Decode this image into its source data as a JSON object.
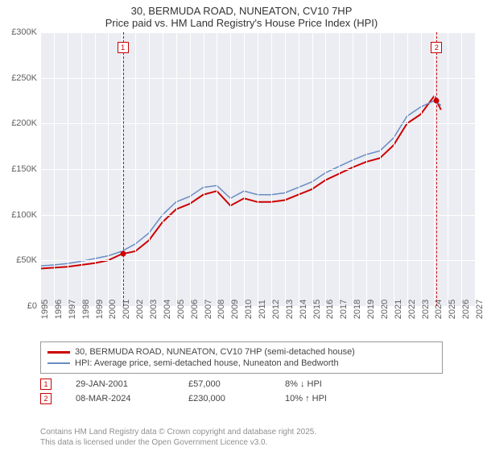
{
  "title_line1": "30, BERMUDA ROAD, NUNEATON, CV10 7HP",
  "title_line2": "Price paid vs. HM Land Registry's House Price Index (HPI)",
  "chart": {
    "type": "line",
    "background_color": "#ebedf2",
    "grid_color": "#ffffff",
    "ylim": [
      0,
      300000
    ],
    "ytick_step": 50000,
    "yticks": [
      "£0",
      "£50K",
      "£100K",
      "£150K",
      "£200K",
      "£250K",
      "£300K"
    ],
    "xlim": [
      1995,
      2027
    ],
    "xticks": [
      1995,
      1996,
      1997,
      1998,
      1999,
      2000,
      2001,
      2002,
      2003,
      2004,
      2005,
      2006,
      2007,
      2008,
      2009,
      2010,
      2011,
      2012,
      2013,
      2014,
      2015,
      2016,
      2017,
      2018,
      2019,
      2020,
      2021,
      2022,
      2023,
      2024,
      2025,
      2026,
      2027
    ],
    "series": [
      {
        "name": "property",
        "label": "30, BERMUDA ROAD, NUNEATON, CV10 7HP (semi-detached house)",
        "color": "#cc0000",
        "line_width": 2,
        "data": [
          [
            1995,
            41000
          ],
          [
            1996,
            42000
          ],
          [
            1997,
            43000
          ],
          [
            1998,
            45000
          ],
          [
            1999,
            47000
          ],
          [
            2000,
            50000
          ],
          [
            2001,
            57000
          ],
          [
            2002,
            60000
          ],
          [
            2003,
            72000
          ],
          [
            2004,
            92000
          ],
          [
            2005,
            106000
          ],
          [
            2006,
            112000
          ],
          [
            2007,
            122000
          ],
          [
            2008,
            126000
          ],
          [
            2009,
            110000
          ],
          [
            2010,
            118000
          ],
          [
            2011,
            114000
          ],
          [
            2012,
            114000
          ],
          [
            2013,
            116000
          ],
          [
            2014,
            122000
          ],
          [
            2015,
            128000
          ],
          [
            2016,
            138000
          ],
          [
            2017,
            145000
          ],
          [
            2018,
            152000
          ],
          [
            2019,
            158000
          ],
          [
            2020,
            162000
          ],
          [
            2021,
            176000
          ],
          [
            2022,
            200000
          ],
          [
            2023,
            210000
          ],
          [
            2024,
            230000
          ],
          [
            2024.5,
            215000
          ]
        ]
      },
      {
        "name": "hpi",
        "label": "HPI: Average price, semi-detached house, Nuneaton and Bedworth",
        "color": "#6a8bc4",
        "line_width": 1.5,
        "data": [
          [
            1995,
            44000
          ],
          [
            1996,
            45000
          ],
          [
            1997,
            46500
          ],
          [
            1998,
            49000
          ],
          [
            1999,
            52000
          ],
          [
            2000,
            55000
          ],
          [
            2001,
            60000
          ],
          [
            2002,
            68000
          ],
          [
            2003,
            80000
          ],
          [
            2004,
            100000
          ],
          [
            2005,
            114000
          ],
          [
            2006,
            120000
          ],
          [
            2007,
            130000
          ],
          [
            2008,
            132000
          ],
          [
            2009,
            118000
          ],
          [
            2010,
            126000
          ],
          [
            2011,
            122000
          ],
          [
            2012,
            122000
          ],
          [
            2013,
            124000
          ],
          [
            2014,
            130000
          ],
          [
            2015,
            136000
          ],
          [
            2016,
            146000
          ],
          [
            2017,
            153000
          ],
          [
            2018,
            160000
          ],
          [
            2019,
            166000
          ],
          [
            2020,
            170000
          ],
          [
            2021,
            184000
          ],
          [
            2022,
            208000
          ],
          [
            2023,
            218000
          ],
          [
            2024,
            225000
          ],
          [
            2024.5,
            220000
          ]
        ]
      }
    ],
    "events": [
      {
        "n": "1",
        "x": 2001.08,
        "which": "property",
        "color": "#cc0000",
        "label_y_offset": 12
      },
      {
        "n": "2",
        "x": 2024.18,
        "which": "property",
        "color": "#cc0000",
        "label_y_offset": 12
      }
    ]
  },
  "transactions": [
    {
      "n": "1",
      "date": "29-JAN-2001",
      "price": "£57,000",
      "delta": "8% ↓ HPI",
      "color": "#cc0000"
    },
    {
      "n": "2",
      "date": "08-MAR-2024",
      "price": "£230,000",
      "delta": "10% ↑ HPI",
      "color": "#cc0000"
    }
  ],
  "attribution": {
    "line1": "Contains HM Land Registry data © Crown copyright and database right 2025.",
    "line2": "This data is licensed under the Open Government Licence v3.0."
  }
}
